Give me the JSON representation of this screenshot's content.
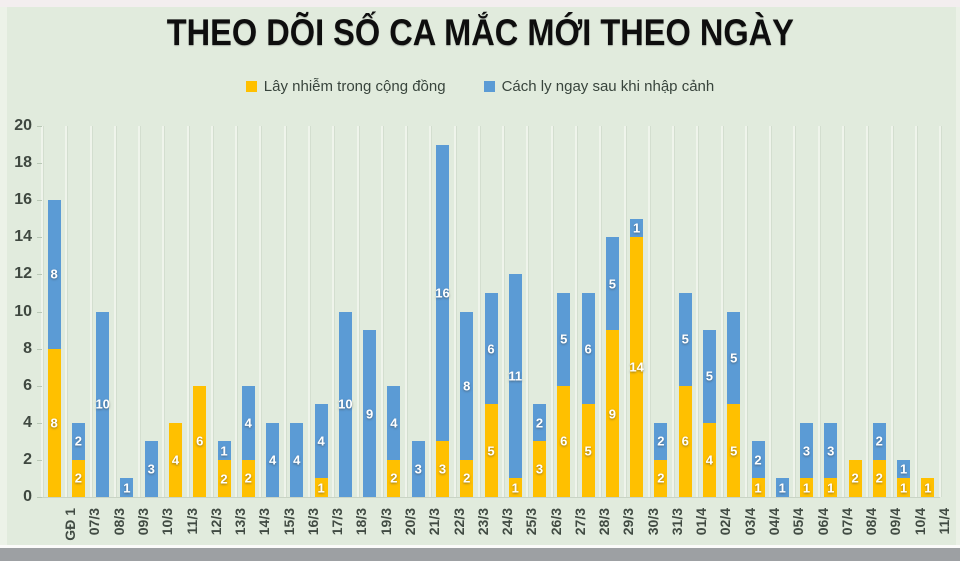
{
  "title": "THEO DÕI SỐ CA MẮC MỚI THEO NGÀY",
  "legend": [
    {
      "label": "Lây nhiễm trong cộng đồng",
      "color": "#FFC000"
    },
    {
      "label": "Cách ly ngay sau khi nhập cảnh",
      "color": "#5B9BD5"
    }
  ],
  "colors": {
    "background": "#e1ebdd",
    "community": "#FFC000",
    "quarantine": "#5B9BD5",
    "title_text": "#0e0e0e",
    "axis_text": "#3f4840",
    "bar_label_text": "#ffffff"
  },
  "chart_data": {
    "type": "bar",
    "stacked": true,
    "title": "THEO DÕI SỐ CA MẮC MỚI THEO NGÀY",
    "xlabel": "",
    "ylabel": "",
    "ylim": [
      0,
      20
    ],
    "yticks": [
      0,
      2,
      4,
      6,
      8,
      10,
      12,
      14,
      16,
      18,
      20
    ],
    "grid": "vertical",
    "legend_position": "top",
    "data_labels": "inside-segment",
    "categories": [
      "GĐ 1",
      "07/3",
      "08/3",
      "09/3",
      "10/3",
      "11/3",
      "12/3",
      "13/3",
      "14/3",
      "15/3",
      "16/3",
      "17/3",
      "18/3",
      "19/3",
      "20/3",
      "21/3",
      "22/3",
      "23/3",
      "24/3",
      "25/3",
      "26/3",
      "27/3",
      "28/3",
      "29/3",
      "30/3",
      "31/3",
      "01/4",
      "02/4",
      "03/4",
      "04/4",
      "05/4",
      "06/4",
      "07/4",
      "08/4",
      "09/4",
      "10/4",
      "11/4"
    ],
    "series": [
      {
        "name": "Lây nhiễm trong cộng đồng",
        "color": "#FFC000",
        "values": [
          8,
          2,
          0,
          0,
          0,
          4,
          6,
          2,
          2,
          0,
          0,
          1,
          0,
          0,
          2,
          0,
          3,
          2,
          5,
          1,
          3,
          6,
          5,
          9,
          14,
          2,
          6,
          4,
          5,
          1,
          0,
          1,
          1,
          2,
          2,
          1,
          1
        ]
      },
      {
        "name": "Cách ly ngay sau khi nhập cảnh",
        "color": "#5B9BD5",
        "values": [
          8,
          2,
          10,
          1,
          3,
          0,
          0,
          1,
          4,
          4,
          4,
          4,
          10,
          9,
          4,
          3,
          16,
          8,
          6,
          11,
          2,
          5,
          6,
          5,
          1,
          2,
          5,
          5,
          5,
          2,
          1,
          3,
          3,
          0,
          2,
          1,
          0
        ]
      }
    ]
  }
}
